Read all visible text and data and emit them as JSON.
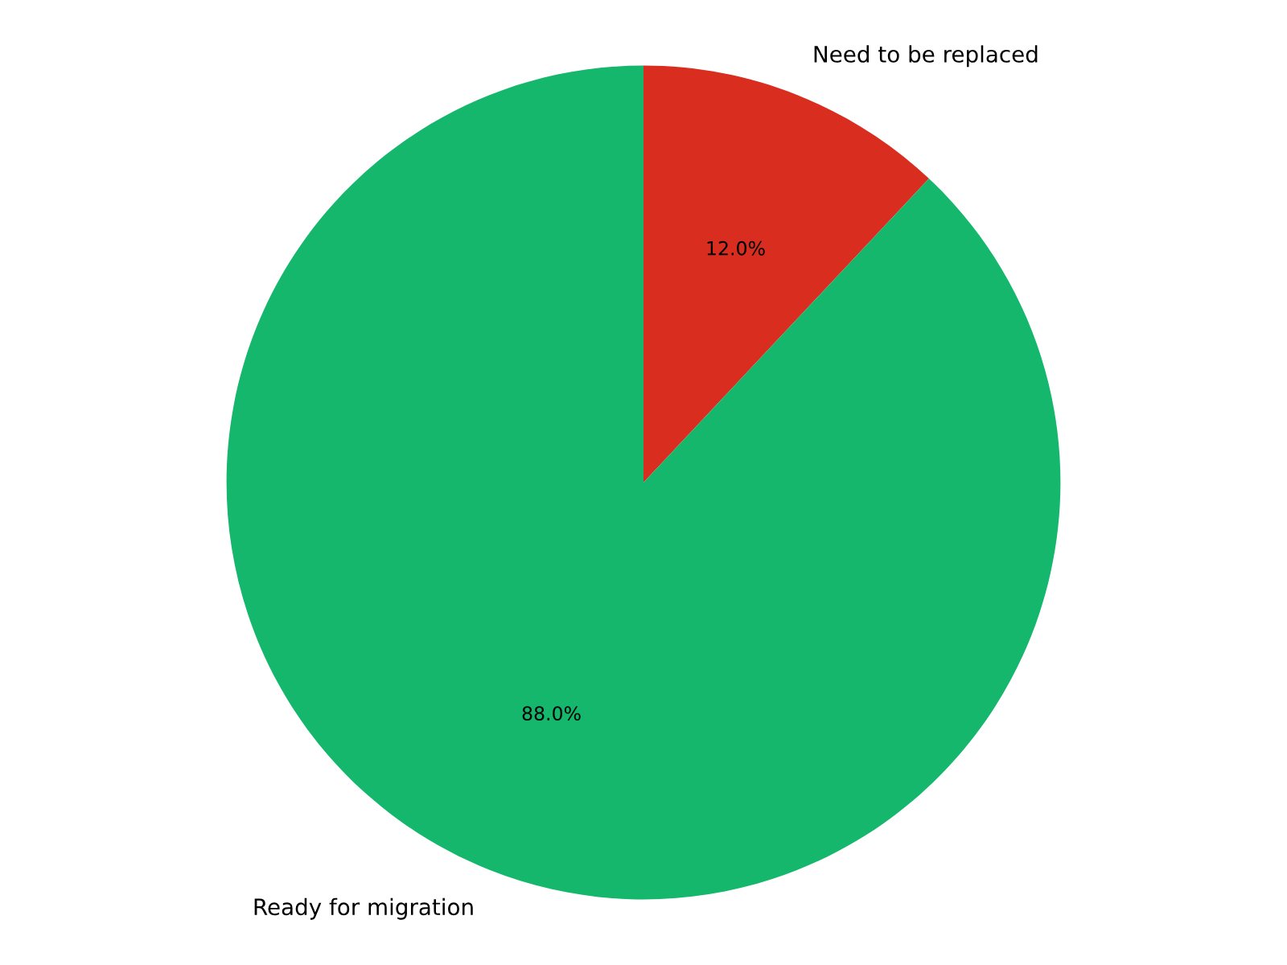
{
  "chart_data": {
    "type": "pie",
    "categories": [
      "Need to be replaced",
      "Ready for migration"
    ],
    "values": [
      12.0,
      88.0
    ],
    "value_labels": [
      "12.0%",
      "88.0%"
    ],
    "colors": [
      "#d92d20",
      "#14b76b"
    ],
    "legend": false
  }
}
